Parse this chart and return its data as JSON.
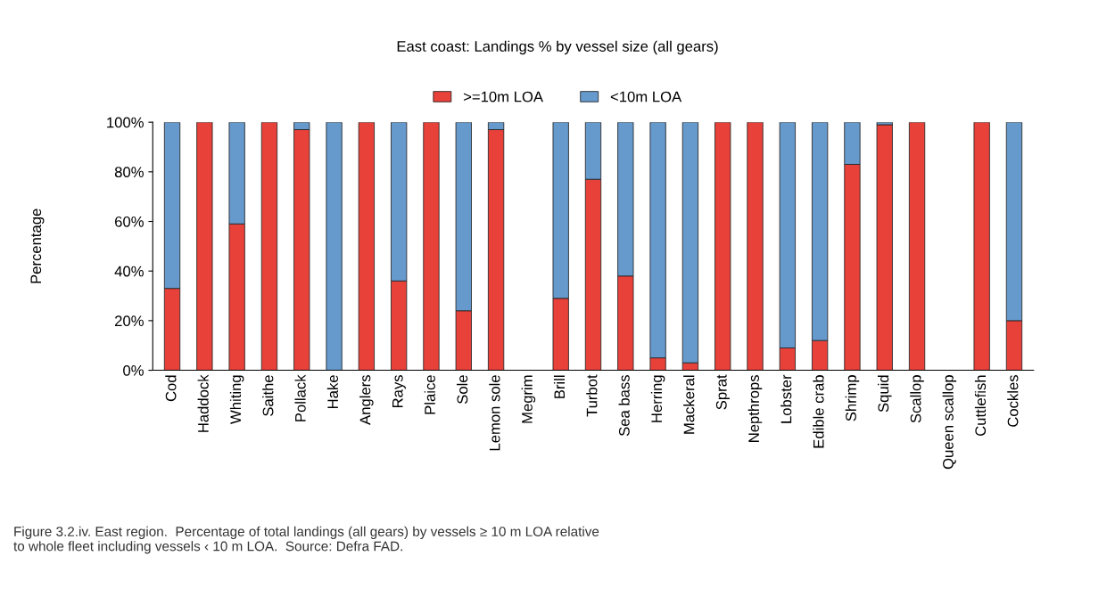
{
  "chart_data": {
    "type": "bar",
    "title": "East coast: Landings % by vessel size (all gears)",
    "ylabel": "Percentage",
    "categories": [
      "Cod",
      "Haddock",
      "Whiting",
      "Saithe",
      "Pollack",
      "Hake",
      "Anglers",
      "Rays",
      "Plaice",
      "Sole",
      "Lemon sole",
      "Megrim",
      "Brill",
      "Turbot",
      "Sea bass",
      "Herring",
      "Mackeral",
      "Sprat",
      "Nepthrops",
      "Lobster",
      "Edible crab",
      "Shrimp",
      "Squid",
      "Scallop",
      "Queen scallop",
      "Cuttlefish",
      "Cockles"
    ],
    "stacked": true,
    "series": [
      {
        "name": ">=10m LOA",
        "color": "#e8413a",
        "values": [
          33,
          100,
          59,
          100,
          97,
          0,
          100,
          36,
          100,
          24,
          97,
          null,
          29,
          77,
          38,
          5,
          3,
          100,
          100,
          9,
          12,
          83,
          99,
          100,
          null,
          100,
          20
        ]
      },
      {
        "name": "<10m LOA",
        "color": "#6699cc",
        "values": [
          67,
          0,
          41,
          0,
          3,
          100,
          0,
          64,
          0,
          76,
          3,
          null,
          71,
          23,
          62,
          95,
          97,
          0,
          0,
          91,
          88,
          17,
          1,
          0,
          null,
          0,
          80
        ]
      }
    ],
    "ylim": [
      0,
      100
    ],
    "yticks": [
      {
        "value": 0,
        "label": "0%"
      },
      {
        "value": 20,
        "label": "20%"
      },
      {
        "value": 40,
        "label": "40%"
      },
      {
        "value": 60,
        "label": "60%"
      },
      {
        "value": 80,
        "label": "80%"
      },
      {
        "value": 100,
        "label": "100%"
      }
    ],
    "grid": false,
    "legend": "top",
    "annotations": [
      "Figure 3.2.iv. East region.  Percentage of total landings (all gears) by vessels ≥ 10 m LOA relative to whole fleet including vessels ‹ 10 m LOA.  Source: Defra FAD."
    ]
  }
}
